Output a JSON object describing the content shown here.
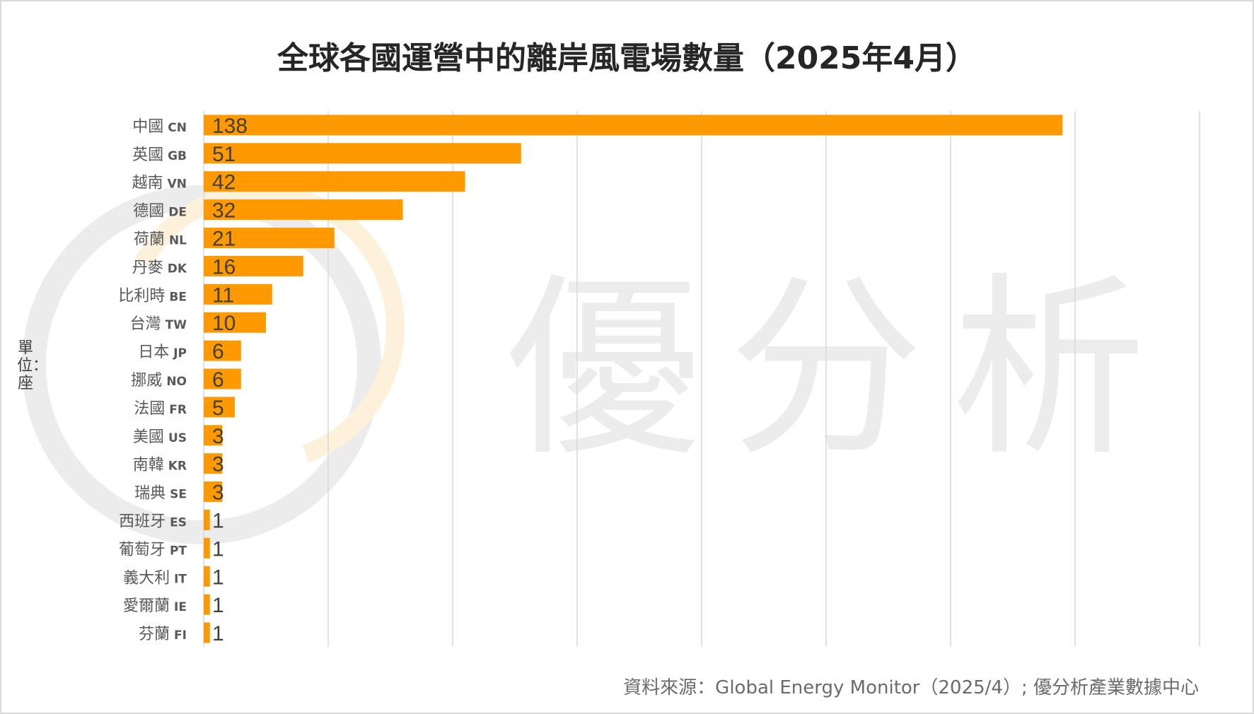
{
  "title": "全球各國運營中的離岸風電場數量（2025年4月）",
  "unit_label": "單位：座",
  "source": "資料來源：Global Energy Monitor（2025/4）; 優分析產業數據中心",
  "watermark": {
    "text": "優分析"
  },
  "colors": {
    "bar": "#FF9900",
    "grid": "#d9d9d9",
    "label": "#595959",
    "value": "#404040"
  },
  "chart_data": {
    "type": "bar",
    "orientation": "horizontal",
    "title": "全球各國運營中的離岸風電場數量（2025年4月）",
    "xlabel": "",
    "ylabel": "單位：座",
    "xlim": [
      0,
      160
    ],
    "grid_step": 20,
    "grid": true,
    "categories": [
      {
        "name": "中國",
        "code": "CN"
      },
      {
        "name": "英國",
        "code": "GB"
      },
      {
        "name": "越南",
        "code": "VN"
      },
      {
        "name": "德國",
        "code": "DE"
      },
      {
        "name": "荷蘭",
        "code": "NL"
      },
      {
        "name": "丹麥",
        "code": "DK"
      },
      {
        "name": "比利時",
        "code": "BE"
      },
      {
        "name": "台灣",
        "code": "TW"
      },
      {
        "name": "日本",
        "code": "JP"
      },
      {
        "name": "挪威",
        "code": "NO"
      },
      {
        "name": "法國",
        "code": "FR"
      },
      {
        "name": "美國",
        "code": "US"
      },
      {
        "name": "南韓",
        "code": "KR"
      },
      {
        "name": "瑞典",
        "code": "SE"
      },
      {
        "name": "西班牙",
        "code": "ES"
      },
      {
        "name": "葡萄牙",
        "code": "PT"
      },
      {
        "name": "義大利",
        "code": "IT"
      },
      {
        "name": "愛爾蘭",
        "code": "IE"
      },
      {
        "name": "芬蘭",
        "code": "FI"
      }
    ],
    "values": [
      138,
      51,
      42,
      32,
      21,
      16,
      11,
      10,
      6,
      6,
      5,
      3,
      3,
      3,
      1,
      1,
      1,
      1,
      1
    ]
  }
}
